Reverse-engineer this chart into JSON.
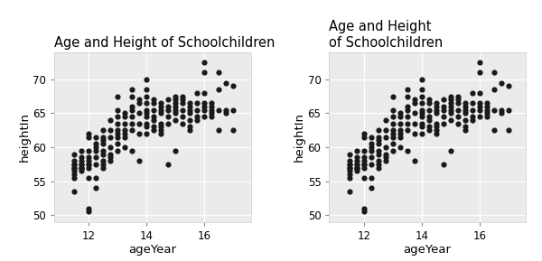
{
  "title_left": "Age and Height of Schoolchildren",
  "title_right": "Age and Height\nof Schoolchildren",
  "xlabel": "ageYear",
  "ylabel": "heightIn",
  "bg_color": "#EBEBEB",
  "outer_bg": "#FFFFFF",
  "dot_color": "#1a1a1a",
  "dot_size": 20,
  "xlim": [
    10.8,
    17.6
  ],
  "ylim": [
    49,
    74
  ],
  "xticks": [
    12,
    14,
    16
  ],
  "yticks": [
    50,
    55,
    60,
    65,
    70
  ],
  "grid_color": "#FFFFFF",
  "title_fontsize": 10.5,
  "axis_label_fontsize": 9.5,
  "tick_fontsize": 8.5,
  "x": [
    11.5,
    11.5,
    11.5,
    11.5,
    11.5,
    11.5,
    11.5,
    11.5,
    11.5,
    11.5,
    11.75,
    11.75,
    11.75,
    11.75,
    11.75,
    11.75,
    11.75,
    11.75,
    11.75,
    12.0,
    12.0,
    12.0,
    12.0,
    12.0,
    12.0,
    12.0,
    12.0,
    12.0,
    12.0,
    12.0,
    12.25,
    12.25,
    12.25,
    12.25,
    12.25,
    12.25,
    12.25,
    12.25,
    12.5,
    12.5,
    12.5,
    12.5,
    12.5,
    12.5,
    12.5,
    12.5,
    12.5,
    12.75,
    12.75,
    12.75,
    12.75,
    12.75,
    12.75,
    12.75,
    13.0,
    13.0,
    13.0,
    13.0,
    13.0,
    13.0,
    13.0,
    13.0,
    13.0,
    13.25,
    13.25,
    13.25,
    13.25,
    13.25,
    13.25,
    13.25,
    13.5,
    13.5,
    13.5,
    13.5,
    13.5,
    13.5,
    13.5,
    13.5,
    13.75,
    13.75,
    13.75,
    13.75,
    13.75,
    13.75,
    14.0,
    14.0,
    14.0,
    14.0,
    14.0,
    14.0,
    14.0,
    14.0,
    14.0,
    14.0,
    14.25,
    14.25,
    14.25,
    14.25,
    14.25,
    14.25,
    14.25,
    14.5,
    14.5,
    14.5,
    14.5,
    14.5,
    14.5,
    14.5,
    14.5,
    14.75,
    14.75,
    14.75,
    14.75,
    14.75,
    14.75,
    15.0,
    15.0,
    15.0,
    15.0,
    15.0,
    15.0,
    15.0,
    15.0,
    15.25,
    15.25,
    15.25,
    15.25,
    15.25,
    15.25,
    15.5,
    15.5,
    15.5,
    15.5,
    15.5,
    15.5,
    15.5,
    15.75,
    15.75,
    15.75,
    15.75,
    15.75,
    16.0,
    16.0,
    16.0,
    16.0,
    16.0,
    16.0,
    16.0,
    16.25,
    16.25,
    16.25,
    16.25,
    16.25,
    16.5,
    16.5,
    16.5,
    16.5,
    16.75,
    16.75,
    16.75,
    17.0,
    17.0,
    17.0
  ],
  "y": [
    57.5,
    59.0,
    57.5,
    58.0,
    57.0,
    56.5,
    56.0,
    57.0,
    55.5,
    53.5,
    58.5,
    59.5,
    57.5,
    57.0,
    57.5,
    58.0,
    57.0,
    56.5,
    57.0,
    61.5,
    62.0,
    59.5,
    58.0,
    57.5,
    57.0,
    57.5,
    58.5,
    55.5,
    51.0,
    50.5,
    61.5,
    60.0,
    59.5,
    60.5,
    58.5,
    57.5,
    55.5,
    54.0,
    62.5,
    61.5,
    60.5,
    61.0,
    59.5,
    59.0,
    58.0,
    57.5,
    57.0,
    64.0,
    62.5,
    61.5,
    60.0,
    59.0,
    58.5,
    58.0,
    67.5,
    65.5,
    64.5,
    63.5,
    62.5,
    62.0,
    61.5,
    60.5,
    59.5,
    65.0,
    64.5,
    63.5,
    62.5,
    62.0,
    61.5,
    60.0,
    68.5,
    67.5,
    66.0,
    65.5,
    64.5,
    63.5,
    62.5,
    59.5,
    67.0,
    66.5,
    65.0,
    63.5,
    62.0,
    58.0,
    70.0,
    68.5,
    67.5,
    66.5,
    65.5,
    65.0,
    64.5,
    63.5,
    63.0,
    62.0,
    67.0,
    66.5,
    65.5,
    64.5,
    64.0,
    63.0,
    62.5,
    66.5,
    66.0,
    65.5,
    65.0,
    63.5,
    63.0,
    62.5,
    62.0,
    67.0,
    66.0,
    65.5,
    64.5,
    63.5,
    57.5,
    67.5,
    67.0,
    66.5,
    66.0,
    65.5,
    65.0,
    64.0,
    59.5,
    67.5,
    67.0,
    66.5,
    65.5,
    64.5,
    63.5,
    66.5,
    66.0,
    65.5,
    65.0,
    64.0,
    63.0,
    62.5,
    68.0,
    66.5,
    65.5,
    64.5,
    64.0,
    72.5,
    71.0,
    68.0,
    66.5,
    66.0,
    65.5,
    64.5,
    66.5,
    66.0,
    65.5,
    65.0,
    64.5,
    71.0,
    68.5,
    65.5,
    62.5,
    69.5,
    65.5,
    65.0,
    69.0,
    65.5,
    62.5
  ]
}
